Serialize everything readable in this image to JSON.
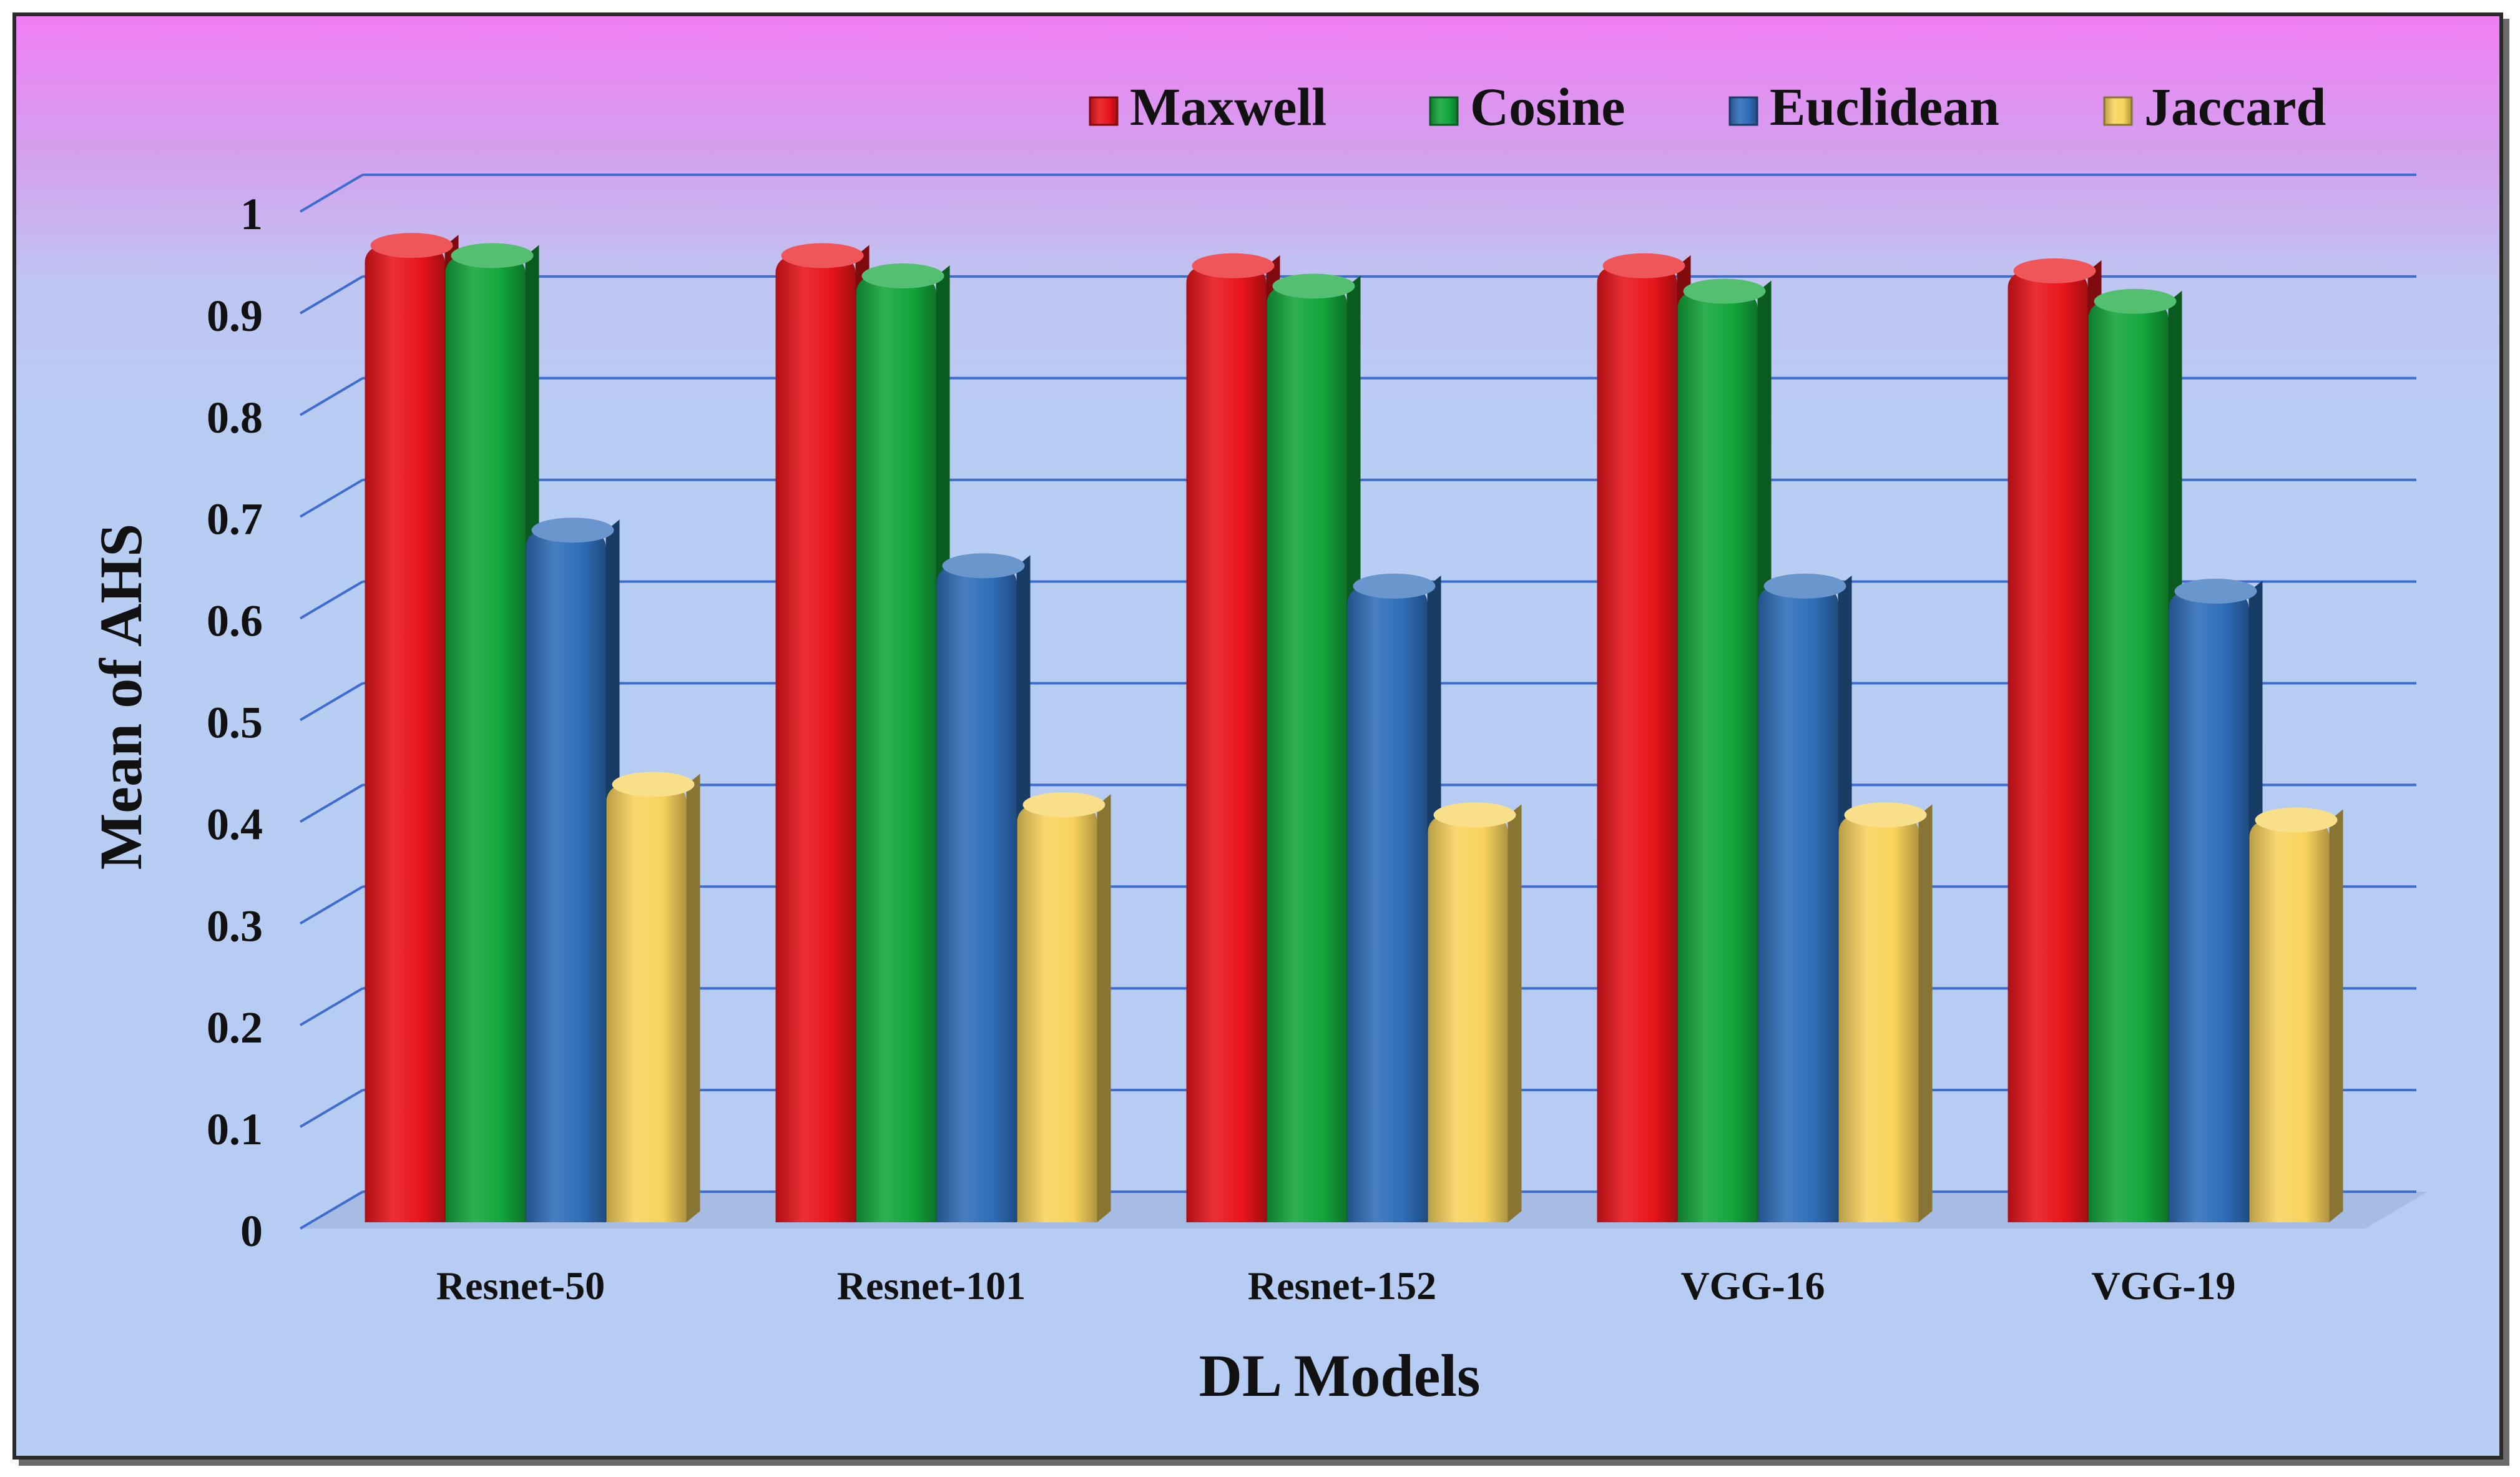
{
  "chart_data": {
    "type": "bar",
    "title": "",
    "xlabel": "DL Models",
    "ylabel": "Mean of AHS",
    "categories": [
      "Resnet-50",
      "Resnet-101",
      "Resnet-152",
      "VGG-16",
      "VGG-19"
    ],
    "series": [
      {
        "name": "Maxwell",
        "color": "#e8141a",
        "values": [
          0.96,
          0.95,
          0.94,
          0.94,
          0.935
        ]
      },
      {
        "name": "Cosine",
        "color": "#12a53a",
        "values": [
          0.95,
          0.93,
          0.92,
          0.915,
          0.905
        ]
      },
      {
        "name": "Euclidean",
        "color": "#2e6db8",
        "values": [
          0.68,
          0.645,
          0.625,
          0.625,
          0.62
        ]
      },
      {
        "name": "Jaccard",
        "color": "#f8d35c",
        "values": [
          0.43,
          0.41,
          0.4,
          0.4,
          0.395
        ]
      }
    ],
    "yticks": [
      "0",
      "0.1",
      "0.2",
      "0.3",
      "0.4",
      "0.5",
      "0.6",
      "0.7",
      "0.8",
      "0.9",
      "1"
    ],
    "ylim": [
      0,
      1
    ],
    "grid": true,
    "legend_position": "top-right"
  }
}
